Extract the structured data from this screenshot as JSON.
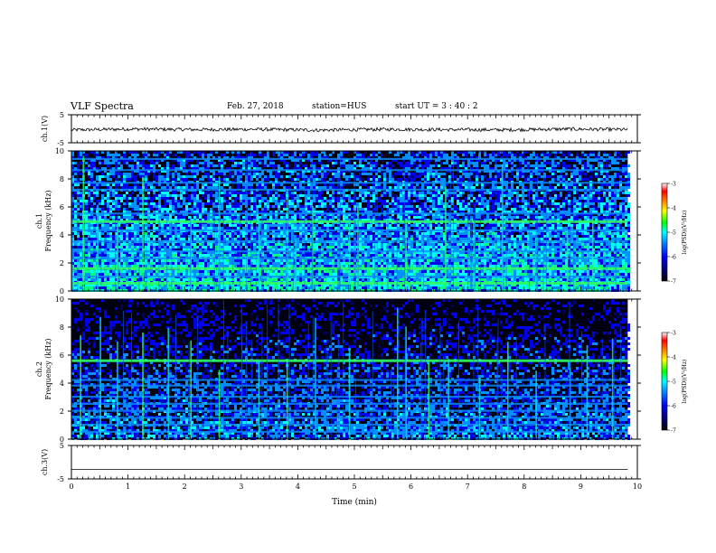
{
  "header": {
    "title": "VLF Spectra",
    "date": "Feb. 27, 2018",
    "station": "station=HUS",
    "start_ut": "start  UT  =   3  : 40 : 2"
  },
  "colors": {
    "colormap": [
      "#000000",
      "#000066",
      "#0000ee",
      "#0090ff",
      "#00ffff",
      "#00ff80",
      "#00ff00",
      "#ffff00",
      "#ff8000",
      "#ff0000",
      "#ffffff"
    ],
    "trace": "#000000"
  },
  "chart_data": [
    {
      "type": "line",
      "panel": "ch.1 waveform",
      "ylabel": "ch.1(V)",
      "ylim": [
        -5,
        5
      ],
      "yticks": [
        "5",
        "-5"
      ],
      "series": [
        {
          "values": [
            -0.4,
            -0.1,
            -0.3,
            -0.2,
            -0.5,
            -0.2,
            -0.3,
            -0.4,
            -0.1,
            -0.3
          ]
        }
      ]
    },
    {
      "type": "heatmap",
      "panel": "ch.1 spectrogram",
      "ylabel": "ch.1\nFrequency (kHz)",
      "xlim": [
        0,
        10
      ],
      "ylim": [
        0,
        10
      ],
      "yticks": [
        "0",
        "2",
        "4",
        "6",
        "8",
        "10"
      ],
      "data_end_min": 9.83,
      "horizontal_lines_khz": [
        0.55,
        1.0,
        1.6,
        2.3,
        2.8,
        3.5,
        4.3,
        4.95,
        5.5,
        7.2,
        7.7,
        8.6,
        9.4
      ],
      "bright_lines_khz": [
        0.55,
        1.6,
        4.95
      ],
      "vertical_events_min": [
        0.2,
        0.45,
        0.8,
        1.25,
        2.1,
        2.6,
        3.3,
        3.8,
        3.95,
        4.25,
        4.9,
        5.05,
        5.9,
        6.6,
        7.1,
        7.6,
        8.2,
        8.75,
        9.2
      ],
      "colorbar": {
        "label": "log(PSD)(V²/Hz)",
        "ticks": [
          "-3",
          "-4",
          "-5",
          "-6",
          "-7"
        ],
        "range": [
          -7,
          -3
        ]
      }
    },
    {
      "type": "heatmap",
      "panel": "ch.2 spectrogram",
      "ylabel": "ch.2\nFrequency (kHz)",
      "xlim": [
        0,
        10
      ],
      "ylim": [
        0,
        10
      ],
      "yticks": [
        "0",
        "2",
        "4",
        "6",
        "8",
        "10"
      ],
      "data_end_min": 9.83,
      "horizontal_lines_khz": [
        0.5,
        1.0,
        1.5,
        2.0,
        2.5,
        3.0,
        3.8,
        4.2,
        5.6
      ],
      "bright_lines_khz": [
        2.9,
        5.6
      ],
      "vertical_events_min": [
        0.15,
        0.5,
        0.8,
        1.25,
        1.7,
        2.1,
        2.6,
        3.3,
        3.8,
        4.3,
        4.9,
        5.75,
        5.9,
        6.3,
        6.65,
        7.2,
        7.7,
        8.2,
        8.8,
        9.1,
        9.55
      ],
      "colorbar": {
        "label": "log(PSD)(V²/Hz)",
        "ticks": [
          "-3",
          "-4",
          "-5",
          "-6",
          "-7"
        ],
        "range": [
          -7,
          -3
        ]
      }
    },
    {
      "type": "line",
      "panel": "ch.3 waveform",
      "ylabel": "ch.3(V)",
      "ylim": [
        -5,
        5
      ],
      "yticks": [
        "5",
        "-5"
      ],
      "series": [
        {
          "values": [
            -2.2,
            -2.2,
            -2.2,
            -2.2,
            -2.2,
            -2.2,
            -2.2,
            -2.2,
            -2.2,
            -2.2
          ]
        }
      ],
      "xlabel": "Time (min)",
      "xlim": [
        0,
        10
      ],
      "xticks": [
        "0",
        "1",
        "2",
        "3",
        "4",
        "5",
        "6",
        "7",
        "8",
        "9",
        "10"
      ]
    }
  ]
}
